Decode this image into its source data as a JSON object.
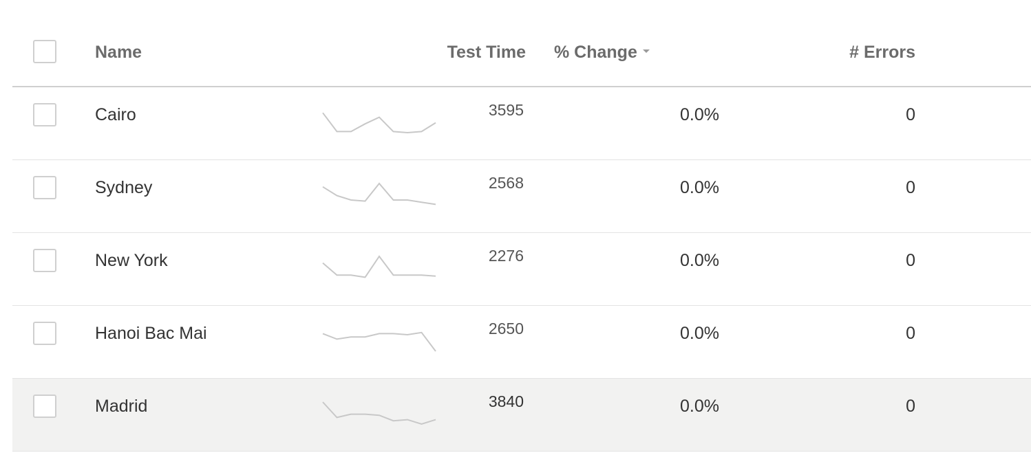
{
  "columns": {
    "name": "Name",
    "test_time": "Test Time",
    "pct_change": "% Change",
    "errors": "# Errors"
  },
  "sparkline_color": "#c8c8c8",
  "highlight_color": "#f2f2f1",
  "rows": [
    {
      "name": "Cairo",
      "test_time": "3595",
      "pct_change": "0.0%",
      "errors": "0",
      "trend": [
        0.1,
        0.95,
        0.95,
        0.6,
        0.3,
        0.95,
        1.0,
        0.95,
        0.55
      ],
      "highlighted": false
    },
    {
      "name": "Sydney",
      "test_time": "2568",
      "pct_change": "0.0%",
      "errors": "0",
      "trend": [
        0.15,
        0.55,
        0.75,
        0.8,
        0.0,
        0.75,
        0.75,
        0.85,
        0.95
      ],
      "highlighted": false
    },
    {
      "name": "New York",
      "test_time": "2276",
      "pct_change": "0.0%",
      "errors": "0",
      "trend": [
        0.3,
        0.85,
        0.85,
        0.95,
        0.0,
        0.85,
        0.85,
        0.85,
        0.9
      ],
      "highlighted": false
    },
    {
      "name": "Hanoi Bac Mai",
      "test_time": "2650",
      "pct_change": "0.0%",
      "errors": "0",
      "trend": [
        0.2,
        0.45,
        0.35,
        0.35,
        0.2,
        0.2,
        0.25,
        0.15,
        1.0
      ],
      "highlighted": false
    },
    {
      "name": "Madrid",
      "test_time": "3840",
      "pct_change": "0.0%",
      "errors": "0",
      "trend": [
        0.0,
        0.7,
        0.55,
        0.55,
        0.6,
        0.85,
        0.8,
        1.0,
        0.8
      ],
      "highlighted": true
    }
  ]
}
